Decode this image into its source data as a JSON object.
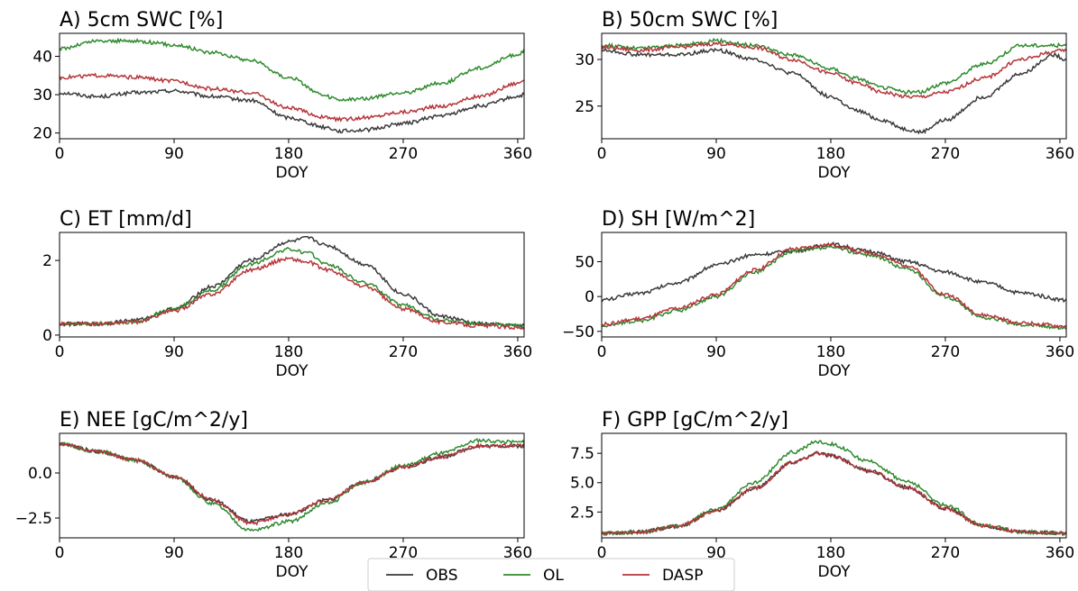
{
  "legend": [
    {
      "name": "OBS",
      "color": "#3a3a3a"
    },
    {
      "name": "OL",
      "color": "#2e8b2e"
    },
    {
      "name": "DASP",
      "color": "#b5353a"
    }
  ],
  "chart_data": [
    {
      "type": "line",
      "title": "A) 5cm SWC [%]",
      "xlabel": "DOY",
      "xlim": [
        0,
        365
      ],
      "xticks": [
        0,
        90,
        180,
        270,
        360
      ],
      "ylim": [
        18.5,
        46
      ],
      "yticks": [
        20,
        30,
        40
      ],
      "series": [
        {
          "name": "OBS",
          "x": [
            0,
            30,
            60,
            90,
            120,
            150,
            180,
            210,
            220,
            240,
            270,
            300,
            330,
            360,
            365
          ],
          "y": [
            30.5,
            29.5,
            30.5,
            31,
            29.5,
            28.5,
            24,
            21.5,
            20.5,
            20.8,
            22.5,
            24.5,
            27,
            29.5,
            30
          ]
        },
        {
          "name": "OL",
          "x": [
            0,
            30,
            60,
            90,
            120,
            150,
            180,
            210,
            220,
            240,
            270,
            300,
            330,
            360,
            365
          ],
          "y": [
            42,
            44,
            44,
            43,
            41,
            39,
            34.5,
            29.5,
            28.5,
            29,
            30.5,
            33,
            37,
            40.5,
            41.5
          ]
        },
        {
          "name": "DASP",
          "x": [
            0,
            30,
            60,
            90,
            120,
            150,
            180,
            210,
            220,
            240,
            270,
            300,
            330,
            360,
            365
          ],
          "y": [
            34.5,
            35,
            34.5,
            33.5,
            31.5,
            30.5,
            26.5,
            24,
            23.5,
            24,
            25.5,
            27,
            29.5,
            33,
            34
          ]
        }
      ]
    },
    {
      "type": "line",
      "title": "B) 50cm SWC [%]",
      "xlabel": "DOY",
      "xlim": [
        0,
        365
      ],
      "xticks": [
        0,
        90,
        180,
        270,
        360
      ],
      "ylim": [
        21.5,
        32.8
      ],
      "yticks": [
        25,
        30
      ],
      "series": [
        {
          "name": "OBS",
          "x": [
            0,
            30,
            60,
            90,
            120,
            150,
            180,
            200,
            220,
            240,
            250,
            270,
            300,
            330,
            355,
            365
          ],
          "y": [
            31,
            30.5,
            30.5,
            31,
            30,
            28.5,
            26,
            24.5,
            23.5,
            22.5,
            22.2,
            23.5,
            26,
            28.5,
            30.5,
            30
          ]
        },
        {
          "name": "OL",
          "x": [
            0,
            30,
            60,
            90,
            120,
            150,
            180,
            200,
            220,
            240,
            250,
            270,
            300,
            330,
            355,
            365
          ],
          "y": [
            31.5,
            31.2,
            31.5,
            32,
            31.5,
            30.5,
            29,
            28,
            27,
            26.5,
            26.5,
            27.5,
            29.5,
            31.5,
            31.5,
            31.5
          ]
        },
        {
          "name": "DASP",
          "x": [
            0,
            30,
            60,
            90,
            120,
            150,
            180,
            200,
            220,
            240,
            250,
            270,
            300,
            330,
            355,
            365
          ],
          "y": [
            31.3,
            31,
            31.3,
            31.7,
            31.3,
            30,
            28.5,
            27.5,
            26.5,
            26,
            26,
            26.5,
            28,
            30,
            30.8,
            31
          ]
        }
      ]
    },
    {
      "type": "line",
      "title": "C) ET [mm/d]",
      "xlabel": "DOY",
      "xlim": [
        0,
        365
      ],
      "xticks": [
        0,
        90,
        180,
        270,
        360
      ],
      "ylim": [
        -0.05,
        2.75
      ],
      "yticks": [
        0,
        2
      ],
      "series": [
        {
          "name": "OBS",
          "x": [
            0,
            30,
            60,
            90,
            120,
            150,
            180,
            195,
            210,
            240,
            270,
            300,
            330,
            365
          ],
          "y": [
            0.3,
            0.3,
            0.4,
            0.7,
            1.3,
            2.0,
            2.5,
            2.6,
            2.4,
            1.9,
            1.1,
            0.5,
            0.3,
            0.25
          ]
        },
        {
          "name": "OL",
          "x": [
            0,
            30,
            60,
            90,
            120,
            150,
            180,
            195,
            210,
            240,
            270,
            300,
            330,
            365
          ],
          "y": [
            0.3,
            0.3,
            0.35,
            0.7,
            1.2,
            1.9,
            2.3,
            2.2,
            1.9,
            1.4,
            0.8,
            0.4,
            0.3,
            0.25
          ]
        },
        {
          "name": "DASP",
          "x": [
            0,
            30,
            60,
            90,
            120,
            150,
            180,
            195,
            210,
            240,
            270,
            300,
            330,
            365
          ],
          "y": [
            0.3,
            0.3,
            0.35,
            0.65,
            1.1,
            1.75,
            2.05,
            1.95,
            1.75,
            1.3,
            0.7,
            0.35,
            0.25,
            0.2
          ]
        }
      ]
    },
    {
      "type": "line",
      "title": "D) SH [W/m^2]",
      "xlabel": "DOY",
      "xlim": [
        0,
        365
      ],
      "xticks": [
        0,
        90,
        180,
        270,
        360
      ],
      "ylim": [
        -58,
        92
      ],
      "yticks": [
        -50,
        0,
        50
      ],
      "series": [
        {
          "name": "OBS",
          "x": [
            0,
            30,
            60,
            90,
            120,
            150,
            180,
            210,
            240,
            270,
            300,
            330,
            365
          ],
          "y": [
            -5,
            5,
            20,
            45,
            60,
            65,
            75,
            65,
            50,
            35,
            20,
            5,
            -5
          ]
        },
        {
          "name": "OL",
          "x": [
            0,
            30,
            60,
            90,
            120,
            150,
            180,
            210,
            240,
            270,
            300,
            330,
            365
          ],
          "y": [
            -42,
            -35,
            -20,
            0,
            35,
            65,
            70,
            60,
            40,
            0,
            -30,
            -40,
            -45
          ]
        },
        {
          "name": "DASP",
          "x": [
            0,
            30,
            60,
            90,
            120,
            150,
            180,
            210,
            240,
            270,
            300,
            330,
            365
          ],
          "y": [
            -40,
            -32,
            -17,
            3,
            38,
            68,
            74,
            63,
            45,
            3,
            -27,
            -38,
            -43
          ]
        }
      ]
    },
    {
      "type": "line",
      "title": "E) NEE [gC/m^2/y]",
      "xlabel": "DOY",
      "xlim": [
        0,
        365
      ],
      "xticks": [
        0,
        90,
        180,
        270,
        360
      ],
      "ylim": [
        -3.6,
        2.2
      ],
      "yticks": [
        -2.5,
        0.0
      ],
      "series": [
        {
          "name": "OBS",
          "x": [
            0,
            30,
            60,
            90,
            120,
            150,
            180,
            210,
            240,
            270,
            300,
            330,
            365
          ],
          "y": [
            1.6,
            1.2,
            0.7,
            -0.2,
            -1.5,
            -2.7,
            -2.3,
            -1.5,
            -0.5,
            0.3,
            0.9,
            1.5,
            1.5
          ]
        },
        {
          "name": "OL",
          "x": [
            0,
            30,
            60,
            90,
            120,
            150,
            180,
            210,
            240,
            270,
            300,
            330,
            365
          ],
          "y": [
            1.6,
            1.2,
            0.7,
            -0.2,
            -1.7,
            -3.2,
            -2.7,
            -1.7,
            -0.5,
            0.4,
            1.1,
            1.8,
            1.7
          ]
        },
        {
          "name": "DASP",
          "x": [
            0,
            30,
            60,
            90,
            120,
            150,
            180,
            210,
            240,
            270,
            300,
            330,
            365
          ],
          "y": [
            1.6,
            1.2,
            0.7,
            -0.2,
            -1.5,
            -2.8,
            -2.3,
            -1.5,
            -0.5,
            0.3,
            0.9,
            1.5,
            1.5
          ]
        }
      ]
    },
    {
      "type": "line",
      "title": "F) GPP [gC/m^2/y]",
      "xlabel": "DOY",
      "xlim": [
        0,
        365
      ],
      "xticks": [
        0,
        90,
        180,
        270,
        360
      ],
      "ylim": [
        0.3,
        9.2
      ],
      "yticks": [
        2.5,
        5.0,
        7.5
      ],
      "series": [
        {
          "name": "OBS",
          "x": [
            0,
            30,
            60,
            90,
            120,
            150,
            170,
            180,
            210,
            240,
            270,
            300,
            330,
            365
          ],
          "y": [
            0.7,
            0.8,
            1.3,
            2.6,
            4.5,
            6.7,
            7.5,
            7.3,
            6.0,
            4.6,
            2.8,
            1.3,
            0.8,
            0.7
          ]
        },
        {
          "name": "OL",
          "x": [
            0,
            30,
            60,
            90,
            120,
            150,
            170,
            180,
            210,
            240,
            270,
            300,
            330,
            365
          ],
          "y": [
            0.7,
            0.8,
            1.3,
            2.7,
            5.0,
            7.6,
            8.5,
            8.3,
            6.8,
            5.1,
            3.1,
            1.4,
            0.8,
            0.7
          ]
        },
        {
          "name": "DASP",
          "x": [
            0,
            30,
            60,
            90,
            120,
            150,
            170,
            180,
            210,
            240,
            270,
            300,
            330,
            365
          ],
          "y": [
            0.7,
            0.8,
            1.3,
            2.6,
            4.5,
            6.7,
            7.5,
            7.3,
            6.0,
            4.6,
            2.8,
            1.3,
            0.8,
            0.7
          ]
        }
      ]
    }
  ]
}
